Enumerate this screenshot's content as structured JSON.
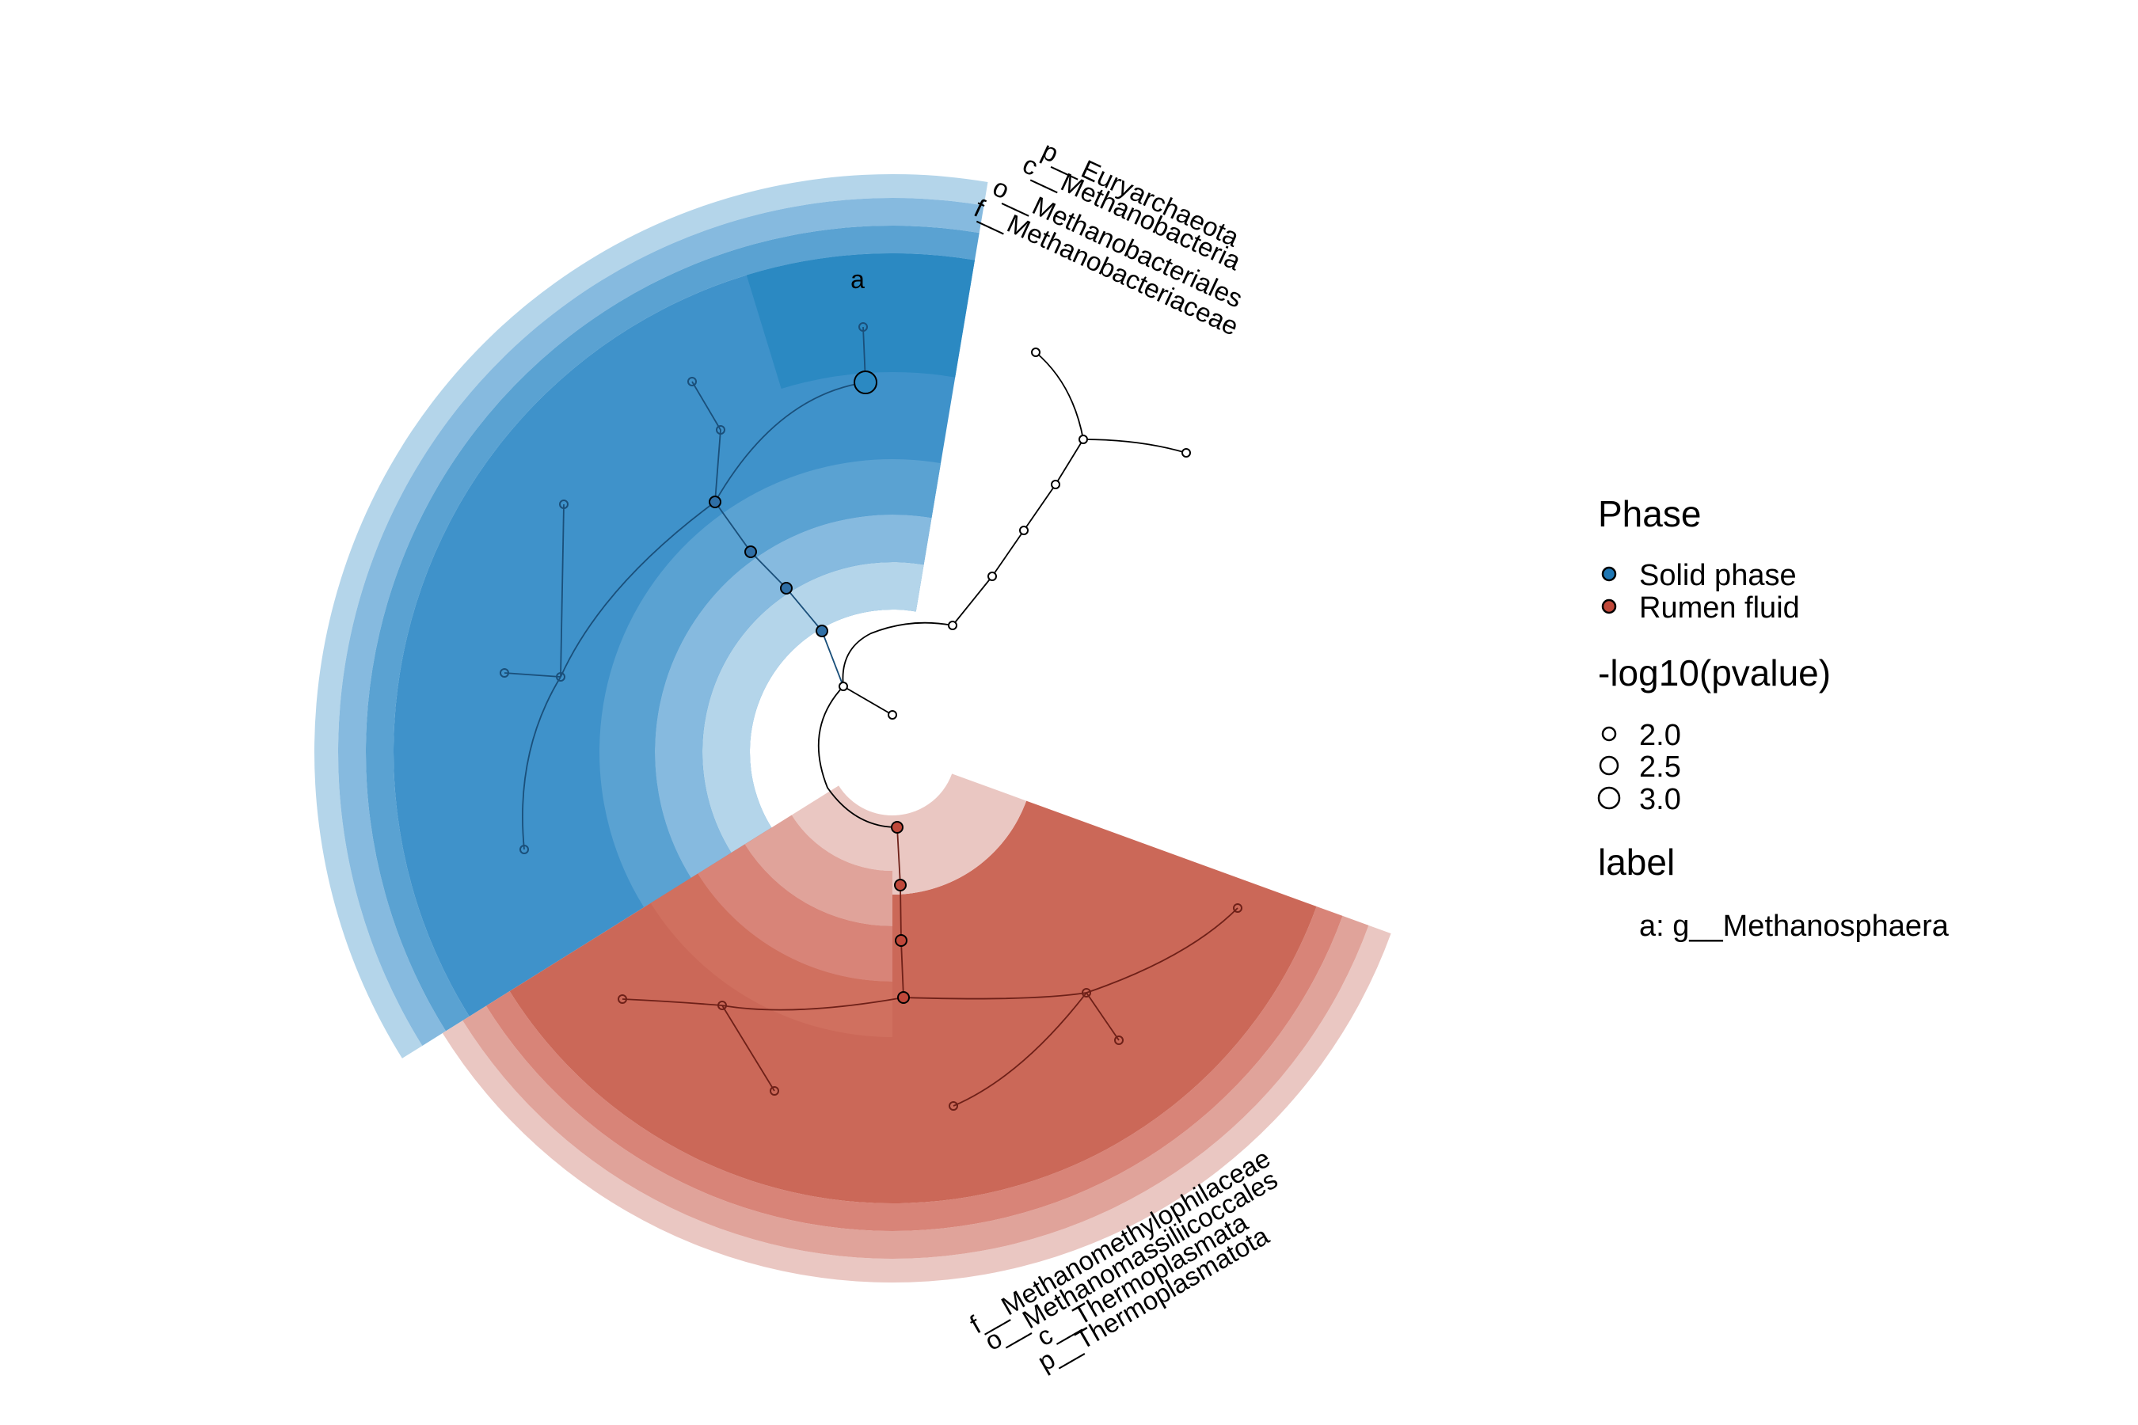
{
  "groups": [
    {
      "name": "Solid phase",
      "color": "#2b89c2",
      "clade_labels": [
        "p__Euryarchaeota",
        "c__Methanobacteria",
        "o__Methanobacteriales",
        "f__Methanobacteriaceae"
      ]
    },
    {
      "name": "Rumen fluid",
      "color": "#cb6858",
      "clade_labels": [
        "f__Methanomethylophilaceae",
        "o__Methanomassiliicoccales",
        "c__Thermoplasmata",
        "p__Thermoplasmatota"
      ]
    }
  ],
  "node_letter": "a",
  "legend": {
    "phase_title": "Phase",
    "phase_items": [
      {
        "label": "Solid phase",
        "color": "#1f77b4"
      },
      {
        "label": "Rumen fluid",
        "color": "#c0483a"
      }
    ],
    "size_title": "-log10(pvalue)",
    "size_items": [
      "2.0",
      "2.5",
      "3.0"
    ],
    "label_title": "label",
    "label_items": [
      "a: g__Methanosphaera"
    ]
  }
}
